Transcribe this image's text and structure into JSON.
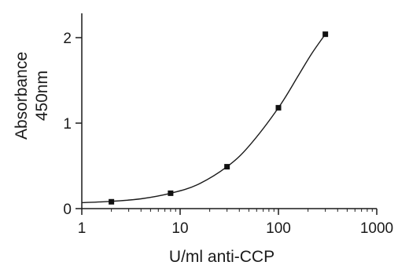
{
  "chart_data": {
    "type": "scatter",
    "title": "",
    "xlabel": "U/ml anti-CCP",
    "ylabel_lines": [
      "Absorbance",
      "450nm"
    ],
    "x_scale": "log",
    "xlim": [
      1,
      1000
    ],
    "ylim": [
      0,
      2.3
    ],
    "x_ticks": [
      1,
      10,
      100,
      1000
    ],
    "x_tick_labels": [
      "1",
      "10",
      "100",
      "1000"
    ],
    "y_ticks": [
      0,
      1,
      2
    ],
    "y_tick_labels": [
      "0",
      "1",
      "2"
    ],
    "grid": false,
    "legend": "none",
    "colors": {
      "marks": "#111111",
      "axes": "#1a1a1a"
    },
    "series": [
      {
        "points": [
          {
            "x": 2,
            "y": 0.08
          },
          {
            "x": 8,
            "y": 0.18
          },
          {
            "x": 30,
            "y": 0.49
          },
          {
            "x": 100,
            "y": 1.18
          },
          {
            "x": 300,
            "y": 2.04
          }
        ]
      }
    ],
    "fit_curve": [
      {
        "x": 1,
        "y": 0.07
      },
      {
        "x": 2,
        "y": 0.085
      },
      {
        "x": 4,
        "y": 0.115
      },
      {
        "x": 8,
        "y": 0.18
      },
      {
        "x": 15,
        "y": 0.28
      },
      {
        "x": 30,
        "y": 0.49
      },
      {
        "x": 50,
        "y": 0.73
      },
      {
        "x": 100,
        "y": 1.18
      },
      {
        "x": 160,
        "y": 1.56
      },
      {
        "x": 220,
        "y": 1.82
      },
      {
        "x": 300,
        "y": 2.04
      }
    ]
  }
}
